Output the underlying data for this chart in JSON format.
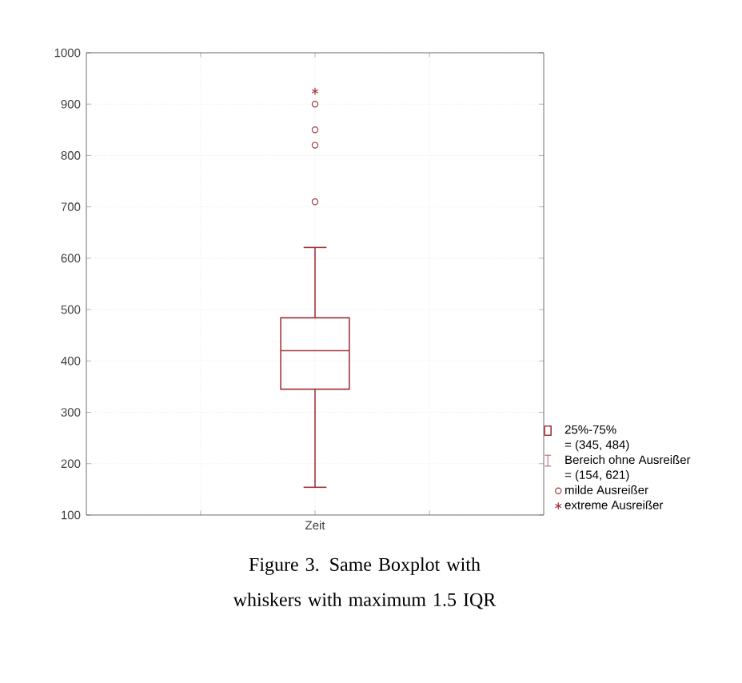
{
  "chart_data": {
    "type": "box",
    "categories": [
      "Zeit"
    ],
    "ylim": [
      100,
      1000
    ],
    "yticks": [
      100,
      200,
      300,
      400,
      500,
      600,
      700,
      800,
      900,
      1000
    ],
    "grid": true,
    "legend": "bottom right",
    "series": [
      {
        "name": "25%-75%",
        "color": "#a3373c",
        "boxes": [
          {
            "low": 154,
            "q1": 345,
            "median": 420,
            "q3": 484,
            "high": 621
          }
        ]
      },
      {
        "type": "scatter",
        "name": "milde Ausreißer",
        "color": "#a3373c",
        "marker": "circle",
        "x": [
          "Zeit",
          "Zeit",
          "Zeit",
          "Zeit"
        ],
        "values": [
          710,
          820,
          850,
          900
        ]
      },
      {
        "type": "scatter",
        "name": "extreme Ausreißer",
        "color": "#a3373c",
        "marker": "cross",
        "x": [
          "Zeit"
        ],
        "values": [
          925
        ]
      }
    ],
    "annotations": [
      "= (345, 484)",
      "Bereich ohne Ausreißer",
      "= (154, 621)",
      "Figure 3. Same Boxplot with whiskers with maximum 1.5 IQR"
    ]
  }
}
